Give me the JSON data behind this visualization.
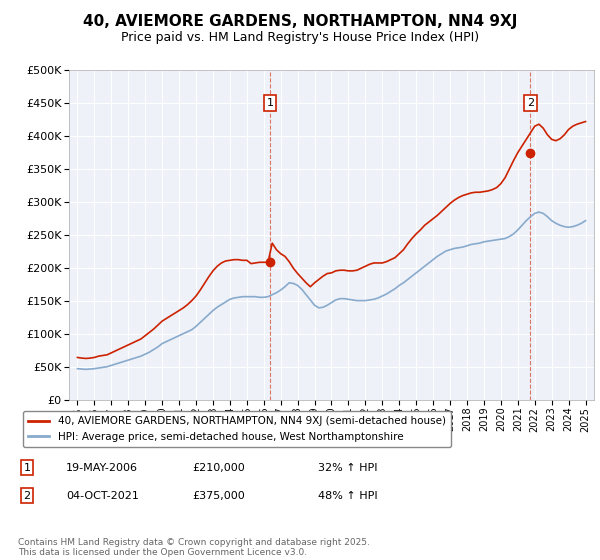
{
  "title": "40, AVIEMORE GARDENS, NORTHAMPTON, NN4 9XJ",
  "subtitle": "Price paid vs. HM Land Registry's House Price Index (HPI)",
  "bg_color": "#eef1f8",
  "red_color": "#cc2200",
  "blue_color": "#88aacc",
  "legend_line1": "40, AVIEMORE GARDENS, NORTHAMPTON, NN4 9XJ (semi-detached house)",
  "legend_line2": "HPI: Average price, semi-detached house, West Northamptonshire",
  "annotation1_date": "19-MAY-2006",
  "annotation1_price": "£210,000",
  "annotation1_hpi": "32% ↑ HPI",
  "annotation2_date": "04-OCT-2021",
  "annotation2_price": "£375,000",
  "annotation2_hpi": "48% ↑ HPI",
  "footer": "Contains HM Land Registry data © Crown copyright and database right 2025.\nThis data is licensed under the Open Government Licence v3.0.",
  "ylim": [
    0,
    500000
  ],
  "yticks": [
    0,
    50000,
    100000,
    150000,
    200000,
    250000,
    300000,
    350000,
    400000,
    450000,
    500000
  ],
  "xmin": 1994.5,
  "xmax": 2025.5,
  "sale1_x": 2006.37,
  "sale1_y": 210000,
  "sale2_x": 2021.75,
  "sale2_y": 375000,
  "hpi_x": [
    1995.0,
    1995.25,
    1995.5,
    1995.75,
    1996.0,
    1996.25,
    1996.5,
    1996.75,
    1997.0,
    1997.25,
    1997.5,
    1997.75,
    1998.0,
    1998.25,
    1998.5,
    1998.75,
    1999.0,
    1999.25,
    1999.5,
    1999.75,
    2000.0,
    2000.25,
    2000.5,
    2000.75,
    2001.0,
    2001.25,
    2001.5,
    2001.75,
    2002.0,
    2002.25,
    2002.5,
    2002.75,
    2003.0,
    2003.25,
    2003.5,
    2003.75,
    2004.0,
    2004.25,
    2004.5,
    2004.75,
    2005.0,
    2005.25,
    2005.5,
    2005.75,
    2006.0,
    2006.25,
    2006.5,
    2006.75,
    2007.0,
    2007.25,
    2007.5,
    2007.75,
    2008.0,
    2008.25,
    2008.5,
    2008.75,
    2009.0,
    2009.25,
    2009.5,
    2009.75,
    2010.0,
    2010.25,
    2010.5,
    2010.75,
    2011.0,
    2011.25,
    2011.5,
    2011.75,
    2012.0,
    2012.25,
    2012.5,
    2012.75,
    2013.0,
    2013.25,
    2013.5,
    2013.75,
    2014.0,
    2014.25,
    2014.5,
    2014.75,
    2015.0,
    2015.25,
    2015.5,
    2015.75,
    2016.0,
    2016.25,
    2016.5,
    2016.75,
    2017.0,
    2017.25,
    2017.5,
    2017.75,
    2018.0,
    2018.25,
    2018.5,
    2018.75,
    2019.0,
    2019.25,
    2019.5,
    2019.75,
    2020.0,
    2020.25,
    2020.5,
    2020.75,
    2021.0,
    2021.25,
    2021.5,
    2021.75,
    2022.0,
    2022.25,
    2022.5,
    2022.75,
    2023.0,
    2023.25,
    2023.5,
    2023.75,
    2024.0,
    2024.25,
    2024.5,
    2024.75,
    2025.0
  ],
  "hpi_y": [
    48000,
    47500,
    47000,
    47500,
    48000,
    49000,
    50000,
    51000,
    53000,
    55000,
    57000,
    59000,
    61000,
    63000,
    65000,
    67000,
    70000,
    73000,
    77000,
    81000,
    86000,
    89000,
    92000,
    95000,
    98000,
    101000,
    104000,
    107000,
    112000,
    118000,
    124000,
    130000,
    136000,
    141000,
    145000,
    149000,
    153000,
    155000,
    156000,
    157000,
    157000,
    157000,
    157000,
    156000,
    156000,
    157000,
    160000,
    163000,
    167000,
    172000,
    178000,
    177000,
    174000,
    168000,
    160000,
    152000,
    144000,
    140000,
    141000,
    144000,
    148000,
    152000,
    154000,
    154000,
    153000,
    152000,
    151000,
    151000,
    151000,
    152000,
    153000,
    155000,
    158000,
    161000,
    165000,
    169000,
    174000,
    178000,
    183000,
    188000,
    193000,
    198000,
    203000,
    208000,
    213000,
    218000,
    222000,
    226000,
    228000,
    230000,
    231000,
    232000,
    234000,
    236000,
    237000,
    238000,
    240000,
    241000,
    242000,
    243000,
    244000,
    245000,
    248000,
    252000,
    258000,
    265000,
    272000,
    278000,
    283000,
    285000,
    283000,
    278000,
    272000,
    268000,
    265000,
    263000,
    262000,
    263000,
    265000,
    268000,
    272000
  ],
  "red_x": [
    1995.0,
    1995.25,
    1995.5,
    1995.75,
    1996.0,
    1996.25,
    1996.5,
    1996.75,
    1997.0,
    1997.25,
    1997.5,
    1997.75,
    1998.0,
    1998.25,
    1998.5,
    1998.75,
    1999.0,
    1999.25,
    1999.5,
    1999.75,
    2000.0,
    2000.25,
    2000.5,
    2000.75,
    2001.0,
    2001.25,
    2001.5,
    2001.75,
    2002.0,
    2002.25,
    2002.5,
    2002.75,
    2003.0,
    2003.25,
    2003.5,
    2003.75,
    2004.0,
    2004.25,
    2004.5,
    2004.75,
    2005.0,
    2005.25,
    2005.5,
    2005.75,
    2006.0,
    2006.25,
    2006.5,
    2006.75,
    2007.0,
    2007.25,
    2007.5,
    2007.75,
    2008.0,
    2008.25,
    2008.5,
    2008.75,
    2009.0,
    2009.25,
    2009.5,
    2009.75,
    2010.0,
    2010.25,
    2010.5,
    2010.75,
    2011.0,
    2011.25,
    2011.5,
    2011.75,
    2012.0,
    2012.25,
    2012.5,
    2012.75,
    2013.0,
    2013.25,
    2013.5,
    2013.75,
    2014.0,
    2014.25,
    2014.5,
    2014.75,
    2015.0,
    2015.25,
    2015.5,
    2015.75,
    2016.0,
    2016.25,
    2016.5,
    2016.75,
    2017.0,
    2017.25,
    2017.5,
    2017.75,
    2018.0,
    2018.25,
    2018.5,
    2018.75,
    2019.0,
    2019.25,
    2019.5,
    2019.75,
    2020.0,
    2020.25,
    2020.5,
    2020.75,
    2021.0,
    2021.25,
    2021.5,
    2021.75,
    2022.0,
    2022.25,
    2022.5,
    2022.75,
    2023.0,
    2023.25,
    2023.5,
    2023.75,
    2024.0,
    2024.25,
    2024.5,
    2024.75,
    2025.0
  ],
  "red_y": [
    65000,
    64000,
    63500,
    64000,
    65000,
    67000,
    68000,
    69000,
    72000,
    75000,
    78000,
    81000,
    84000,
    87000,
    90000,
    93000,
    98000,
    103000,
    108000,
    114000,
    120000,
    124000,
    128000,
    132000,
    136000,
    140000,
    145000,
    151000,
    158000,
    167000,
    177000,
    187000,
    196000,
    203000,
    208000,
    211000,
    212000,
    213000,
    213000,
    212000,
    212000,
    207000,
    208000,
    209000,
    209000,
    209000,
    238000,
    228000,
    222000,
    218000,
    210000,
    200000,
    192000,
    185000,
    178000,
    172000,
    178000,
    183000,
    188000,
    192000,
    193000,
    196000,
    197000,
    197000,
    196000,
    196000,
    197000,
    200000,
    203000,
    206000,
    208000,
    208000,
    208000,
    210000,
    213000,
    216000,
    222000,
    228000,
    237000,
    245000,
    252000,
    258000,
    265000,
    270000,
    275000,
    280000,
    286000,
    292000,
    298000,
    303000,
    307000,
    310000,
    312000,
    314000,
    315000,
    315000,
    316000,
    317000,
    319000,
    322000,
    328000,
    337000,
    350000,
    363000,
    375000,
    385000,
    395000,
    405000,
    415000,
    418000,
    412000,
    402000,
    395000,
    393000,
    396000,
    402000,
    410000,
    415000,
    418000,
    420000,
    422000
  ]
}
